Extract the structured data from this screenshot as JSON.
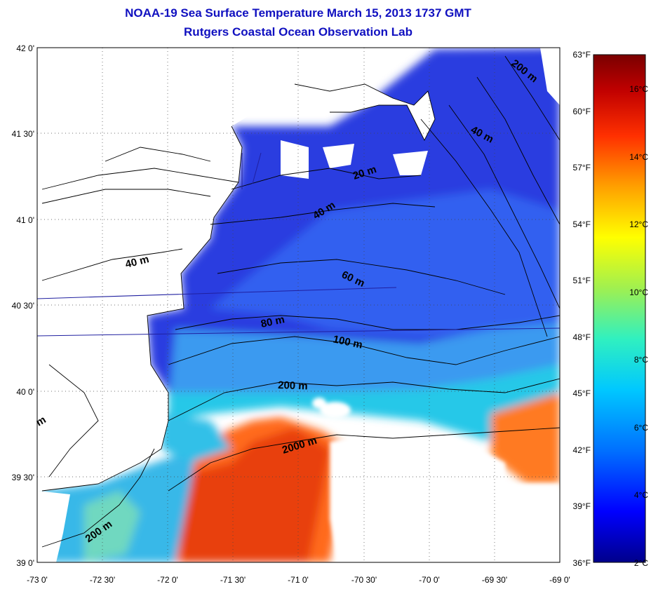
{
  "header": {
    "title": "NOAA-19 Sea Surface Temperature March 15, 2013 1737 GMT",
    "subtitle": "Rutgers Coastal Ocean Observation Lab"
  },
  "map": {
    "lat_labels": [
      "42 0'",
      "41 30'",
      "41 0'",
      "40 30'",
      "40 0'",
      "39 30'",
      "39 0'"
    ],
    "lon_labels": [
      "-73 0'",
      "-72 30'",
      "-72 0'",
      "-71 30'",
      "-71 0'",
      "-70 30'",
      "-70 0'",
      "-69 30'",
      "-69 0'"
    ],
    "lat_range": [
      39,
      42
    ],
    "lon_range": [
      -73,
      -69
    ],
    "isobath_labels": [
      "200 m",
      "40 m",
      "20 m",
      "40 m",
      "40 m",
      "60 m",
      "80 m",
      "100 m",
      "200 m",
      "2000 m",
      "200 m",
      "m"
    ]
  },
  "colorbar": {
    "fahrenheit_labels": [
      "63°F",
      "60°F",
      "57°F",
      "54°F",
      "51°F",
      "48°F",
      "45°F",
      "42°F",
      "39°F",
      "36°F"
    ],
    "celsius_labels": [
      "16°C",
      "14°C",
      "12°C",
      "10°C",
      "8°C",
      "6°C",
      "4°C",
      "2°C"
    ],
    "colors": [
      "#00008b",
      "#0000ff",
      "#0070ff",
      "#00c8ff",
      "#30f0c0",
      "#a0f050",
      "#ffff00",
      "#ffa000",
      "#ff3000",
      "#c00000",
      "#7a0000"
    ]
  }
}
